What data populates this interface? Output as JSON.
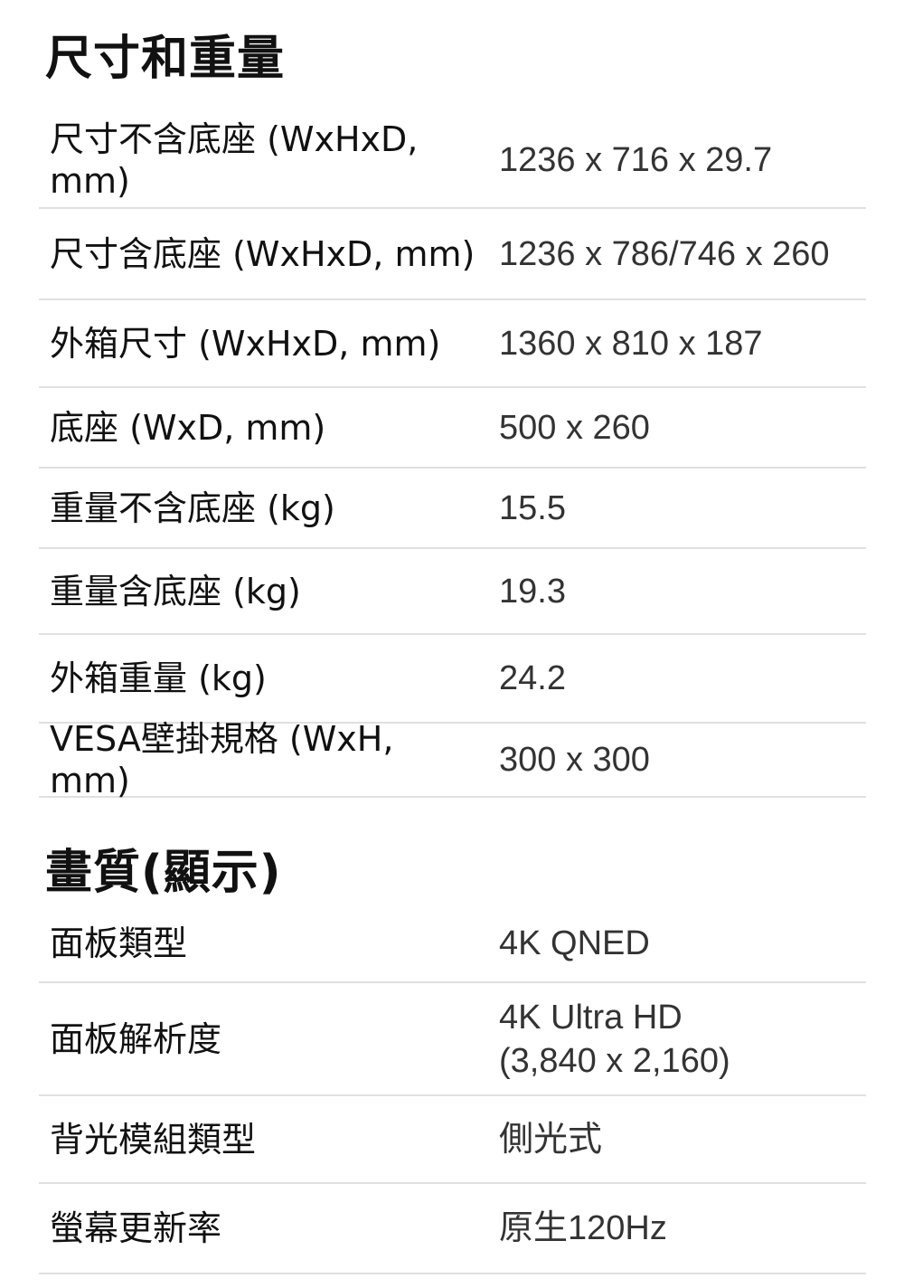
{
  "sections": [
    {
      "title": "尺寸和重量",
      "rows": [
        {
          "label": "尺寸不含底座 (WxHxD, mm)",
          "value": "1236 x 716 x 29.7"
        },
        {
          "label": "尺寸含底座 (WxHxD, mm)",
          "value": "1236 x 786/746 x 260"
        },
        {
          "label": "外箱尺寸 (WxHxD, mm)",
          "value": "1360 x 810 x 187"
        },
        {
          "label": "底座 (WxD, mm)",
          "value": "500 x 260"
        },
        {
          "label": "重量不含底座 (kg)",
          "value": "15.5"
        },
        {
          "label": "重量含底座 (kg)",
          "value": "19.3"
        },
        {
          "label": "外箱重量 (kg)",
          "value": "24.2"
        },
        {
          "label": "VESA壁掛規格 (WxH, mm)",
          "value": "300 x 300"
        }
      ]
    },
    {
      "title": "畫質(顯示)",
      "rows": [
        {
          "label": "面板類型",
          "value": "4K QNED"
        },
        {
          "label": "面板解析度",
          "value": "4K Ultra HD (3,840 x 2,160)"
        },
        {
          "label": "背光模組類型",
          "value": "側光式"
        },
        {
          "label": "螢幕更新率",
          "value": "原生120Hz"
        }
      ]
    }
  ]
}
